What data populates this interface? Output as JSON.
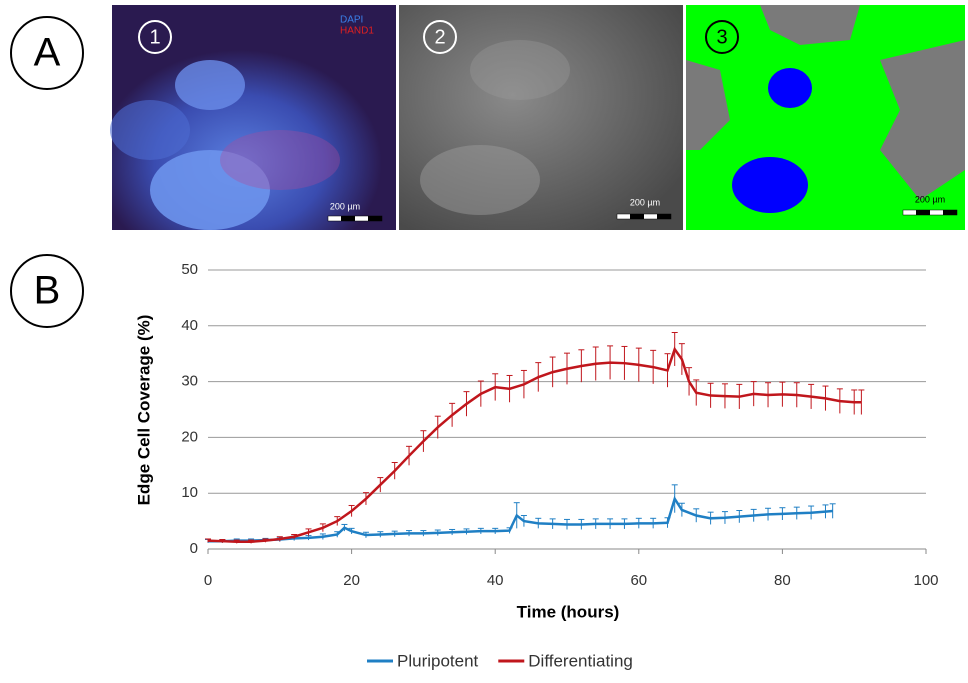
{
  "panel_labels": [
    "A",
    "B"
  ],
  "images": [
    {
      "number": "1",
      "channels": [
        "DAPI",
        "HAND1"
      ],
      "scale_bar": "200 µm"
    },
    {
      "number": "2",
      "scale_bar": "200 µm"
    },
    {
      "number": "3",
      "scale_bar": "200 µm"
    }
  ],
  "chart_data": {
    "type": "line",
    "x_label": "Time (hours)",
    "y_label": "Edge Cell Coverage (%)",
    "xlim": [
      0,
      100
    ],
    "xticks": [
      0,
      20,
      40,
      60,
      80,
      100
    ],
    "ylim": [
      0,
      50
    ],
    "yticks": [
      0,
      10,
      20,
      30,
      40,
      50
    ],
    "grid": true,
    "legend": "bottom",
    "series": [
      {
        "name": "Pluripotent",
        "color": "#1f7fc4",
        "x": [
          0,
          2,
          4,
          6,
          8,
          10,
          12,
          14,
          16,
          18,
          19,
          20,
          22,
          24,
          26,
          28,
          30,
          32,
          34,
          36,
          38,
          40,
          42,
          43,
          44,
          46,
          48,
          50,
          52,
          54,
          56,
          58,
          60,
          62,
          64,
          65,
          66,
          68,
          70,
          72,
          74,
          76,
          78,
          80,
          82,
          84,
          86,
          87
        ],
        "values": [
          1.4,
          1.4,
          1.5,
          1.5,
          1.6,
          1.7,
          1.9,
          2.0,
          2.2,
          2.6,
          3.8,
          3.2,
          2.5,
          2.6,
          2.7,
          2.8,
          2.8,
          2.9,
          3.0,
          3.1,
          3.2,
          3.2,
          3.3,
          6.0,
          5.0,
          4.6,
          4.5,
          4.4,
          4.4,
          4.5,
          4.5,
          4.5,
          4.6,
          4.6,
          4.7,
          9.0,
          7.0,
          6.0,
          5.5,
          5.6,
          5.8,
          6.0,
          6.2,
          6.3,
          6.4,
          6.5,
          6.7,
          6.8
        ],
        "errors": [
          0.3,
          0.3,
          0.3,
          0.3,
          0.3,
          0.4,
          0.4,
          0.4,
          0.5,
          0.5,
          0.6,
          0.5,
          0.5,
          0.5,
          0.5,
          0.5,
          0.5,
          0.5,
          0.5,
          0.5,
          0.5,
          0.5,
          0.5,
          2.3,
          1.0,
          0.9,
          0.9,
          0.9,
          0.9,
          0.9,
          0.9,
          0.9,
          0.9,
          0.9,
          0.9,
          2.5,
          1.2,
          1.2,
          1.1,
          1.1,
          1.1,
          1.1,
          1.1,
          1.1,
          1.1,
          1.2,
          1.2,
          1.3
        ]
      },
      {
        "name": "Differentiating",
        "color": "#c0161c",
        "x": [
          0,
          2,
          4,
          6,
          8,
          10,
          12,
          14,
          16,
          18,
          20,
          22,
          24,
          26,
          28,
          30,
          32,
          34,
          36,
          38,
          40,
          42,
          44,
          46,
          48,
          50,
          52,
          54,
          56,
          58,
          60,
          62,
          64,
          65,
          66,
          67,
          68,
          70,
          72,
          74,
          76,
          78,
          80,
          82,
          84,
          86,
          88,
          90,
          91
        ],
        "values": [
          1.5,
          1.4,
          1.3,
          1.3,
          1.5,
          1.8,
          2.2,
          3.0,
          3.8,
          5.0,
          6.8,
          9.0,
          11.5,
          14.0,
          16.7,
          19.3,
          21.8,
          24.0,
          26.0,
          27.8,
          29.0,
          28.7,
          29.5,
          30.8,
          31.7,
          32.3,
          32.8,
          33.2,
          33.4,
          33.3,
          33.0,
          32.6,
          32.0,
          35.8,
          34.0,
          30.0,
          28.0,
          27.5,
          27.4,
          27.3,
          27.8,
          27.6,
          27.7,
          27.6,
          27.3,
          27.0,
          26.5,
          26.3,
          26.3
        ],
        "errors": [
          0.3,
          0.3,
          0.3,
          0.3,
          0.3,
          0.4,
          0.4,
          0.6,
          0.7,
          0.8,
          1.0,
          1.1,
          1.3,
          1.5,
          1.7,
          1.9,
          2.0,
          2.1,
          2.2,
          2.3,
          2.4,
          2.4,
          2.5,
          2.6,
          2.7,
          2.8,
          2.9,
          3.0,
          3.0,
          3.0,
          3.0,
          3.0,
          3.0,
          3.0,
          2.8,
          2.5,
          2.3,
          2.2,
          2.2,
          2.2,
          2.2,
          2.2,
          2.2,
          2.2,
          2.2,
          2.2,
          2.2,
          2.2,
          2.2
        ]
      }
    ]
  }
}
